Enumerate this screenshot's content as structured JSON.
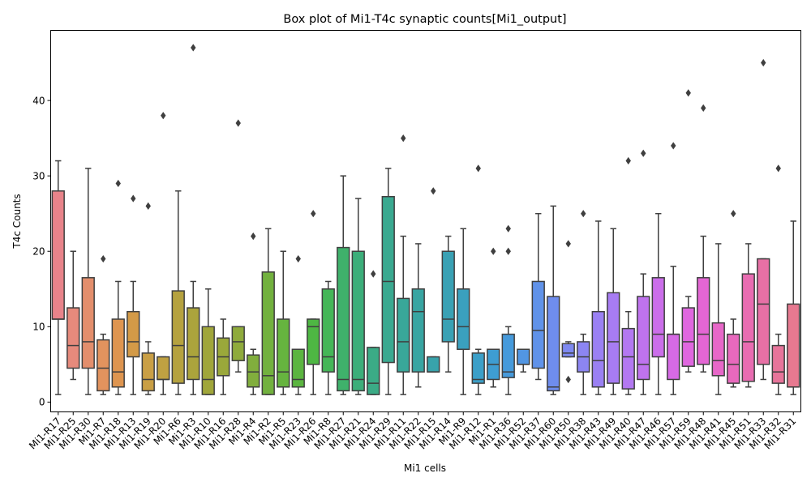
{
  "chart_data": {
    "type": "box",
    "title": "Box plot of Mi1-T4c synaptic counts[Mi1_output]",
    "xlabel": "Mi1 cells",
    "ylabel": "T4c Counts",
    "ylim": [
      -1.3,
      49.3
    ],
    "yticks": [
      0,
      10,
      20,
      30,
      40
    ],
    "grid": false,
    "legend": "none",
    "categories": [
      "Mi1-R17",
      "Mi1-R25",
      "Mi1-R30",
      "Mi1-R7",
      "Mi1-R18",
      "Mi1-R13",
      "Mi1-R19",
      "Mi1-R20",
      "Mi1-R6",
      "Mi1-R3",
      "Mi1-R10",
      "Mi1-R16",
      "Mi1-R28",
      "Mi1-R4",
      "Mi1-R2",
      "Mi1-R5",
      "Mi1-R23",
      "Mi1-R26",
      "Mi1-R8",
      "Mi1-R27",
      "Mi1-R21",
      "Mi1-R24",
      "Mi1-R29",
      "Mi1-R11",
      "Mi1-R22",
      "Mi1-R15",
      "Mi1-R14",
      "Mi1-R9",
      "Mi1-R12",
      "Mi1-R1",
      "Mi1-R36",
      "Mi1-R52",
      "Mi1-R37",
      "Mi1-R60",
      "Mi1-R50",
      "Mi1-R38",
      "Mi1-R43",
      "Mi1-R49",
      "Mi1-R40",
      "Mi1-R47",
      "Mi1-R46",
      "Mi1-R57",
      "Mi1-R59",
      "Mi1-R48",
      "Mi1-R41",
      "Mi1-R45",
      "Mi1-R51",
      "Mi1-R33",
      "Mi1-R32",
      "Mi1-R31"
    ],
    "colors": [
      "#e8838a",
      "#e68a7c",
      "#e38e6c",
      "#e2935e",
      "#de9550",
      "#d39a47",
      "#c99f45",
      "#bfa142",
      "#b5a23f",
      "#aba43c",
      "#a0a63a",
      "#9aa83b",
      "#8fab3c",
      "#81ae3d",
      "#72b13e",
      "#66b43f",
      "#5bb540",
      "#4eb743",
      "#44b657",
      "#3fb16b",
      "#3cae7a",
      "#3bab86",
      "#3aa990",
      "#39a799",
      "#38a5a2",
      "#38a3ab",
      "#39a1b4",
      "#3aa0be",
      "#3b9fc8",
      "#3e9dd2",
      "#469adb",
      "#5296e3",
      "#6092e9",
      "#6f8dee",
      "#7e89f0",
      "#8c85f2",
      "#9a80f3",
      "#a77cf3",
      "#b378f1",
      "#bf73ee",
      "#cb6eea",
      "#d66ae5",
      "#df67df",
      "#e466d4",
      "#e767c8",
      "#e869bd",
      "#e86cb1",
      "#e770a5",
      "#e7749a",
      "#e77990"
    ],
    "boxes": [
      {
        "q1": 11,
        "median": 11,
        "q3": 28,
        "whislo": 1,
        "whishi": 32,
        "fliers": []
      },
      {
        "q1": 4.5,
        "median": 7.5,
        "q3": 12.5,
        "whislo": 3,
        "whishi": 20,
        "fliers": []
      },
      {
        "q1": 4.5,
        "median": 8,
        "q3": 16.5,
        "whislo": 1,
        "whishi": 31,
        "fliers": []
      },
      {
        "q1": 1.5,
        "median": 4.5,
        "q3": 8.25,
        "whislo": 1,
        "whishi": 9,
        "fliers": [
          19
        ]
      },
      {
        "q1": 2,
        "median": 4,
        "q3": 11,
        "whislo": 1,
        "whishi": 16,
        "fliers": [
          29
        ]
      },
      {
        "q1": 6,
        "median": 8,
        "q3": 12,
        "whislo": 1,
        "whishi": 16,
        "fliers": [
          27
        ]
      },
      {
        "q1": 1.5,
        "median": 3,
        "q3": 6.5,
        "whislo": 1,
        "whishi": 8,
        "fliers": [
          26
        ]
      },
      {
        "q1": 3,
        "median": 3,
        "q3": 6,
        "whislo": 1,
        "whishi": 6,
        "fliers": [
          38
        ]
      },
      {
        "q1": 2.5,
        "median": 7.5,
        "q3": 14.75,
        "whislo": 1,
        "whishi": 28,
        "fliers": []
      },
      {
        "q1": 3,
        "median": 6,
        "q3": 12.5,
        "whislo": 1,
        "whishi": 16,
        "fliers": [
          47
        ]
      },
      {
        "q1": 1,
        "median": 3,
        "q3": 10,
        "whislo": 1,
        "whishi": 15,
        "fliers": []
      },
      {
        "q1": 3.5,
        "median": 6,
        "q3": 8.5,
        "whislo": 1,
        "whishi": 11,
        "fliers": []
      },
      {
        "q1": 5.5,
        "median": 8,
        "q3": 10,
        "whislo": 4,
        "whishi": 10,
        "fliers": [
          37
        ]
      },
      {
        "q1": 2,
        "median": 4,
        "q3": 6.25,
        "whislo": 1,
        "whishi": 7,
        "fliers": [
          22
        ]
      },
      {
        "q1": 1,
        "median": 3.5,
        "q3": 17.25,
        "whislo": 1,
        "whishi": 23,
        "fliers": []
      },
      {
        "q1": 2,
        "median": 4,
        "q3": 11,
        "whislo": 1,
        "whishi": 20,
        "fliers": []
      },
      {
        "q1": 2,
        "median": 3,
        "q3": 7,
        "whislo": 1,
        "whishi": 7,
        "fliers": [
          19
        ]
      },
      {
        "q1": 5,
        "median": 10,
        "q3": 11,
        "whislo": 1,
        "whishi": 11,
        "fliers": [
          25
        ]
      },
      {
        "q1": 4,
        "median": 6,
        "q3": 15,
        "whislo": 1,
        "whishi": 16,
        "fliers": []
      },
      {
        "q1": 1.5,
        "median": 3,
        "q3": 20.5,
        "whislo": 1,
        "whishi": 30,
        "fliers": []
      },
      {
        "q1": 1.5,
        "median": 3,
        "q3": 20,
        "whislo": 1,
        "whishi": 27,
        "fliers": []
      },
      {
        "q1": 1,
        "median": 2.5,
        "q3": 7.25,
        "whislo": 1,
        "whishi": 7.25,
        "fliers": [
          17
        ]
      },
      {
        "q1": 5.25,
        "median": 16,
        "q3": 27.25,
        "whislo": 1,
        "whishi": 31,
        "fliers": []
      },
      {
        "q1": 4,
        "median": 8,
        "q3": 13.75,
        "whislo": 1,
        "whishi": 22,
        "fliers": [
          35
        ]
      },
      {
        "q1": 4,
        "median": 12,
        "q3": 15,
        "whislo": 2,
        "whishi": 21,
        "fliers": []
      },
      {
        "q1": 4,
        "median": 4,
        "q3": 6,
        "whislo": 4,
        "whishi": 6,
        "fliers": [
          28
        ]
      },
      {
        "q1": 8,
        "median": 11,
        "q3": 20,
        "whislo": 4,
        "whishi": 22,
        "fliers": []
      },
      {
        "q1": 7,
        "median": 10,
        "q3": 15,
        "whislo": 1,
        "whishi": 23,
        "fliers": []
      },
      {
        "q1": 2.5,
        "median": 3,
        "q3": 6.5,
        "whislo": 1,
        "whishi": 7,
        "fliers": [
          31
        ]
      },
      {
        "q1": 3,
        "median": 5,
        "q3": 7,
        "whislo": 2,
        "whishi": 7,
        "fliers": [
          20
        ]
      },
      {
        "q1": 3.25,
        "median": 4,
        "q3": 9,
        "whislo": 1,
        "whishi": 10,
        "fliers": [
          20,
          23
        ]
      },
      {
        "q1": 5,
        "median": 5,
        "q3": 7,
        "whislo": 4,
        "whishi": 7,
        "fliers": []
      },
      {
        "q1": 4.5,
        "median": 9.5,
        "q3": 16,
        "whislo": 3,
        "whishi": 25,
        "fliers": []
      },
      {
        "q1": 1.5,
        "median": 2,
        "q3": 14,
        "whislo": 1,
        "whishi": 26,
        "fliers": []
      },
      {
        "q1": 6,
        "median": 6.5,
        "q3": 7.75,
        "whislo": 6,
        "whishi": 8,
        "fliers": [
          21,
          3
        ]
      },
      {
        "q1": 4,
        "median": 6,
        "q3": 8,
        "whislo": 1,
        "whishi": 9,
        "fliers": [
          25
        ]
      },
      {
        "q1": 2,
        "median": 5.5,
        "q3": 12,
        "whislo": 1,
        "whishi": 24,
        "fliers": []
      },
      {
        "q1": 2.5,
        "median": 8,
        "q3": 14.5,
        "whislo": 1,
        "whishi": 23,
        "fliers": []
      },
      {
        "q1": 1.75,
        "median": 6,
        "q3": 9.75,
        "whislo": 1,
        "whishi": 12,
        "fliers": [
          32
        ]
      },
      {
        "q1": 3,
        "median": 5,
        "q3": 14,
        "whislo": 1,
        "whishi": 17,
        "fliers": [
          33
        ]
      },
      {
        "q1": 6,
        "median": 9,
        "q3": 16.5,
        "whislo": 1,
        "whishi": 25,
        "fliers": []
      },
      {
        "q1": 3,
        "median": 9,
        "q3": 9,
        "whislo": 1,
        "whishi": 18,
        "fliers": [
          34
        ]
      },
      {
        "q1": 4.75,
        "median": 8,
        "q3": 12.5,
        "whislo": 4,
        "whishi": 14,
        "fliers": [
          41
        ]
      },
      {
        "q1": 5,
        "median": 9,
        "q3": 16.5,
        "whislo": 4,
        "whishi": 22,
        "fliers": [
          39
        ]
      },
      {
        "q1": 3.5,
        "median": 5.5,
        "q3": 10.5,
        "whislo": 1,
        "whishi": 21,
        "fliers": []
      },
      {
        "q1": 2.5,
        "median": 5,
        "q3": 9,
        "whislo": 2,
        "whishi": 11,
        "fliers": [
          25
        ]
      },
      {
        "q1": 2.75,
        "median": 8,
        "q3": 17,
        "whislo": 2,
        "whishi": 21,
        "fliers": []
      },
      {
        "q1": 5,
        "median": 13,
        "q3": 19,
        "whislo": 3,
        "whishi": 19,
        "fliers": [
          45
        ]
      },
      {
        "q1": 2.5,
        "median": 4,
        "q3": 7.5,
        "whislo": 1,
        "whishi": 9,
        "fliers": [
          31
        ]
      },
      {
        "q1": 2,
        "median": 2,
        "q3": 13,
        "whislo": 1,
        "whishi": 24,
        "fliers": []
      }
    ]
  }
}
